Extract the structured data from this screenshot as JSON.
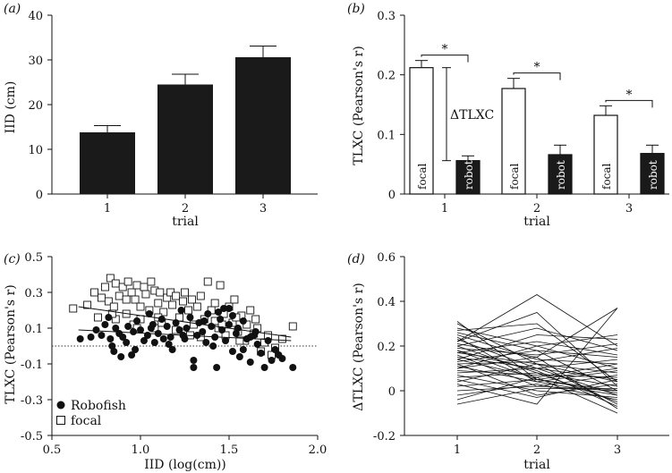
{
  "chart_data": [
    {
      "panel": "(a)",
      "type": "bar",
      "categories": [
        "1",
        "2",
        "3"
      ],
      "values": [
        13.8,
        24.5,
        30.6
      ],
      "errors": [
        1.5,
        2.3,
        2.5
      ],
      "xlabel": "trial",
      "ylabel": "IID (cm)",
      "ylim": [
        0,
        40
      ],
      "yticks": [
        "0",
        "10",
        "20",
        "30",
        "40"
      ],
      "bar_color": "#1a1a1a"
    },
    {
      "panel": "(b)",
      "type": "bar",
      "categories": [
        "1",
        "2",
        "3"
      ],
      "series": [
        {
          "name": "focal",
          "values": [
            0.212,
            0.177,
            0.132
          ],
          "errors": [
            0.012,
            0.017,
            0.016
          ],
          "color": "#ffffff"
        },
        {
          "name": "robot",
          "values": [
            0.056,
            0.066,
            0.068
          ],
          "errors": [
            0.008,
            0.016,
            0.014
          ],
          "color": "#1a1a1a"
        }
      ],
      "xlabel": "trial",
      "ylabel": "TLXC (Pearson's r)",
      "ylim": [
        0,
        0.3
      ],
      "yticks": [
        "0",
        "0.1",
        "0.2",
        "0.3"
      ],
      "significance": [
        "*",
        "*",
        "*"
      ],
      "delta_label": "ΔTLXC",
      "delta_range": [
        0.056,
        0.212
      ]
    },
    {
      "panel": "(c)",
      "type": "scatter",
      "xlabel": "IID (log(cm))",
      "ylabel": "TLXC (Pearson's r)",
      "xlim": [
        0.5,
        2.0
      ],
      "ylim": [
        -0.5,
        0.5
      ],
      "xticks": [
        "0.5",
        "1.0",
        "1.5",
        "2.0"
      ],
      "yticks": [
        "0.5",
        "0.3",
        "0.1",
        "-0.1",
        "-0.3",
        "-0.5"
      ],
      "reference_line_y": 0,
      "legend": [
        {
          "name": "Robofish",
          "marker": "filled-circle"
        },
        {
          "name": "focal",
          "marker": "open-square"
        }
      ],
      "fits": [
        {
          "series": "focal",
          "x": [
            0.65,
            1.85
          ],
          "y": [
            0.22,
            0.05
          ]
        },
        {
          "series": "Robofish",
          "x": [
            0.65,
            1.85
          ],
          "y": [
            0.09,
            0.03
          ]
        }
      ],
      "series": [
        {
          "name": "Robofish",
          "points": [
            [
              0.66,
              0.04
            ],
            [
              0.72,
              0.05
            ],
            [
              0.75,
              0.09
            ],
            [
              0.78,
              0.06
            ],
            [
              0.8,
              0.12
            ],
            [
              0.82,
              0.16
            ],
            [
              0.83,
              0.04
            ],
            [
              0.84,
              0.0
            ],
            [
              0.85,
              -0.03
            ],
            [
              0.86,
              0.1
            ],
            [
              0.88,
              0.07
            ],
            [
              0.9,
              0.05
            ],
            [
              0.92,
              0.02
            ],
            [
              0.93,
              0.11
            ],
            [
              0.95,
              -0.05
            ],
            [
              0.96,
              0.08
            ],
            [
              0.98,
              0.14
            ],
            [
              1.0,
              0.09
            ],
            [
              1.02,
              0.03
            ],
            [
              1.04,
              0.06
            ],
            [
              1.05,
              0.18
            ],
            [
              1.07,
              0.12
            ],
            [
              1.08,
              0.02
            ],
            [
              1.1,
              0.07
            ],
            [
              1.12,
              0.15
            ],
            [
              1.13,
              0.04
            ],
            [
              1.15,
              0.11
            ],
            [
              1.17,
              0.05
            ],
            [
              1.18,
              -0.02
            ],
            [
              1.2,
              0.13
            ],
            [
              1.22,
              0.09
            ],
            [
              1.23,
              0.2
            ],
            [
              1.25,
              0.04
            ],
            [
              1.26,
              0.1
            ],
            [
              1.28,
              0.16
            ],
            [
              1.3,
              -0.08
            ],
            [
              1.3,
              -0.12
            ],
            [
              1.32,
              0.06
            ],
            [
              1.33,
              0.13
            ],
            [
              1.35,
              0.08
            ],
            [
              1.37,
              0.02
            ],
            [
              1.38,
              0.18
            ],
            [
              1.4,
              0.11
            ],
            [
              1.42,
              0.05
            ],
            [
              1.43,
              -0.12
            ],
            [
              1.45,
              0.15
            ],
            [
              1.46,
              0.09
            ],
            [
              1.47,
              0.21
            ],
            [
              1.48,
              0.03
            ],
            [
              1.5,
              0.12
            ],
            [
              1.52,
              -0.03
            ],
            [
              1.52,
              0.17
            ],
            [
              1.54,
              0.07
            ],
            [
              1.55,
              0.1
            ],
            [
              1.56,
              -0.06
            ],
            [
              1.58,
              0.14
            ],
            [
              1.6,
              0.04
            ],
            [
              1.62,
              -0.09
            ],
            [
              1.64,
              0.06
            ],
            [
              1.66,
              0.01
            ],
            [
              1.68,
              -0.04
            ],
            [
              1.7,
              -0.12
            ],
            [
              1.72,
              0.03
            ],
            [
              1.74,
              -0.08
            ],
            [
              1.76,
              -0.02
            ],
            [
              1.78,
              -0.05
            ],
            [
              1.8,
              -0.07
            ],
            [
              1.86,
              -0.12
            ],
            [
              1.5,
              0.21
            ],
            [
              1.44,
              0.19
            ],
            [
              1.36,
              0.14
            ],
            [
              1.24,
              0.06
            ],
            [
              1.16,
              0.01
            ],
            [
              1.06,
              0.1
            ],
            [
              0.97,
              -0.02
            ],
            [
              0.89,
              -0.06
            ],
            [
              1.62,
              0.05
            ],
            [
              1.58,
              -0.02
            ],
            [
              1.65,
              0.08
            ],
            [
              1.41,
              0.0
            ]
          ]
        },
        {
          "name": "focal",
          "points": [
            [
              0.62,
              0.21
            ],
            [
              0.7,
              0.23
            ],
            [
              0.74,
              0.3
            ],
            [
              0.76,
              0.16
            ],
            [
              0.78,
              0.27
            ],
            [
              0.8,
              0.33
            ],
            [
              0.82,
              0.25
            ],
            [
              0.83,
              0.38
            ],
            [
              0.85,
              0.22
            ],
            [
              0.86,
              0.35
            ],
            [
              0.88,
              0.28
            ],
            [
              0.9,
              0.33
            ],
            [
              0.92,
              0.18
            ],
            [
              0.93,
              0.36
            ],
            [
              0.95,
              0.3
            ],
            [
              0.97,
              0.26
            ],
            [
              0.98,
              0.34
            ],
            [
              1.0,
              0.22
            ],
            [
              1.02,
              0.33
            ],
            [
              1.03,
              0.29
            ],
            [
              1.05,
              0.2
            ],
            [
              1.06,
              0.36
            ],
            [
              1.08,
              0.31
            ],
            [
              1.1,
              0.24
            ],
            [
              1.11,
              0.3
            ],
            [
              1.13,
              0.19
            ],
            [
              1.15,
              0.27
            ],
            [
              1.17,
              0.3
            ],
            [
              1.18,
              0.23
            ],
            [
              1.2,
              0.28
            ],
            [
              1.22,
              0.16
            ],
            [
              1.24,
              0.25
            ],
            [
              1.25,
              0.3
            ],
            [
              1.27,
              0.2
            ],
            [
              1.29,
              0.26
            ],
            [
              1.3,
              0.12
            ],
            [
              1.32,
              0.22
            ],
            [
              1.34,
              0.28
            ],
            [
              1.36,
              0.15
            ],
            [
              1.38,
              0.36
            ],
            [
              1.4,
              0.2
            ],
            [
              1.42,
              0.24
            ],
            [
              1.44,
              0.1
            ],
            [
              1.45,
              0.34
            ],
            [
              1.47,
              0.18
            ],
            [
              1.48,
              0.06
            ],
            [
              1.5,
              0.22
            ],
            [
              1.52,
              0.13
            ],
            [
              1.53,
              0.26
            ],
            [
              1.55,
              0.08
            ],
            [
              1.57,
              0.17
            ],
            [
              1.59,
              0.03
            ],
            [
              1.6,
              0.12
            ],
            [
              1.62,
              0.2
            ],
            [
              1.64,
              0.07
            ],
            [
              1.66,
              0.1
            ],
            [
              1.68,
              -0.03
            ],
            [
              1.7,
              0.02
            ],
            [
              1.72,
              0.06
            ],
            [
              1.74,
              -0.05
            ],
            [
              1.76,
              -0.01
            ],
            [
              1.8,
              0.04
            ],
            [
              1.86,
              0.11
            ],
            [
              0.96,
              0.12
            ],
            [
              1.08,
              0.1
            ],
            [
              1.12,
              0.13
            ],
            [
              1.28,
              0.06
            ],
            [
              1.34,
              0.05
            ],
            [
              0.86,
              0.15
            ],
            [
              1.0,
              0.15
            ],
            [
              1.56,
              0.03
            ],
            [
              1.65,
              0.15
            ],
            [
              1.42,
              0.14
            ],
            [
              1.2,
              0.09
            ],
            [
              0.92,
              0.26
            ],
            [
              0.98,
              0.1
            ],
            [
              0.84,
              0.18
            ],
            [
              1.54,
              0.16
            ],
            [
              1.46,
              0.12
            ],
            [
              1.1,
              0.16
            ]
          ]
        }
      ]
    },
    {
      "panel": "(d)",
      "type": "line",
      "categories": [
        "1",
        "2",
        "3"
      ],
      "xlabel": "trial",
      "ylabel": "ΔTLXC (Pearson's r)",
      "ylim": [
        -0.2,
        0.6
      ],
      "yticks": [
        "0.6",
        "0.4",
        "0.2",
        "0",
        "-0.2"
      ],
      "series": [
        [
          0.31,
          0.05,
          0.0
        ],
        [
          0.3,
          0.12,
          0.08
        ],
        [
          0.28,
          0.2,
          0.1
        ],
        [
          0.26,
          0.18,
          0.15
        ],
        [
          0.25,
          0.14,
          0.12
        ],
        [
          0.23,
          0.1,
          0.05
        ],
        [
          0.22,
          0.43,
          0.2
        ],
        [
          0.22,
          0.35,
          0.02
        ],
        [
          0.21,
          0.15,
          0.37
        ],
        [
          0.2,
          0.28,
          0.18
        ],
        [
          0.2,
          0.08,
          -0.05
        ],
        [
          0.19,
          0.16,
          0.21
        ],
        [
          0.18,
          0.05,
          0.1
        ],
        [
          0.17,
          0.12,
          0.04
        ],
        [
          0.17,
          0.22,
          0.16
        ],
        [
          0.16,
          0.02,
          0.07
        ],
        [
          0.15,
          0.1,
          -0.02
        ],
        [
          0.14,
          0.06,
          0.12
        ],
        [
          0.13,
          0.18,
          0.0
        ],
        [
          0.12,
          -0.02,
          0.03
        ],
        [
          0.11,
          0.04,
          0.09
        ],
        [
          0.1,
          0.15,
          -0.08
        ],
        [
          0.09,
          0.07,
          0.06
        ],
        [
          0.08,
          0.1,
          0.14
        ],
        [
          0.07,
          0.0,
          -0.03
        ],
        [
          0.06,
          0.08,
          0.02
        ],
        [
          0.05,
          -0.03,
          0.05
        ],
        [
          0.04,
          0.12,
          -0.06
        ],
        [
          0.03,
          -0.06,
          0.37
        ],
        [
          0.02,
          0.05,
          -0.01
        ],
        [
          0.0,
          0.02,
          0.0
        ],
        [
          -0.02,
          0.03,
          -0.04
        ],
        [
          -0.04,
          0.06,
          -0.1
        ],
        [
          -0.06,
          0.01,
          0.01
        ],
        [
          0.1,
          0.2,
          0.25
        ],
        [
          0.14,
          0.25,
          0.23
        ],
        [
          0.18,
          0.09,
          -0.07
        ],
        [
          0.24,
          0.04,
          -0.02
        ],
        [
          0.27,
          0.3,
          0.04
        ],
        [
          0.12,
          0.13,
          0.19
        ]
      ]
    }
  ]
}
